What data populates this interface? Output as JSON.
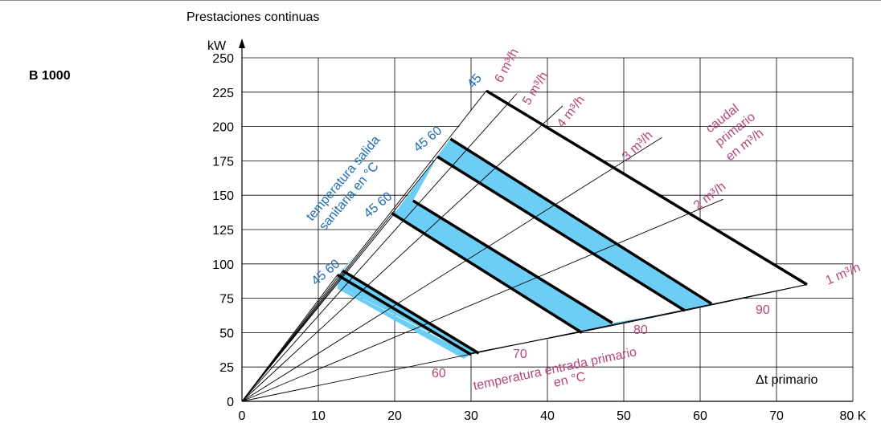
{
  "model": "B 1000",
  "colors": {
    "blue_text": "#1c6cb4",
    "magenta_text": "#b8457a",
    "fill_blue": "#6ccef4",
    "white": "#ffffff"
  },
  "chart_data": {
    "type": "area",
    "title": "Prestaciones continuas",
    "ylabel": "kW",
    "xlabel": "Δt primario",
    "x_unit": "K",
    "xlim": [
      0,
      80
    ],
    "ylim": [
      0,
      250
    ],
    "x_ticks": [
      0,
      10,
      20,
      30,
      40,
      50,
      60,
      70,
      80
    ],
    "y_ticks": [
      0,
      25,
      50,
      75,
      100,
      125,
      150,
      175,
      200,
      225,
      250
    ],
    "grid": true,
    "flow_rays": [
      {
        "label": "1 m³/h",
        "end": [
          74,
          85
        ]
      },
      {
        "label": "2 m³/h",
        "end": [
          63,
          147
        ]
      },
      {
        "label": "3 m³/h",
        "end": [
          55,
          192
        ]
      },
      {
        "label": "4 m³/h",
        "end": [
          42,
          215
        ]
      },
      {
        "label": "5 m³/h",
        "end": [
          36,
          224
        ]
      },
      {
        "label": "6 m³/h",
        "end": [
          32,
          226
        ]
      }
    ],
    "lower_boundary": [
      [
        30,
        35
      ],
      [
        44,
        50
      ],
      [
        58,
        66
      ],
      [
        74,
        85
      ]
    ],
    "upper_boundary": [
      [
        12.5,
        84
      ],
      [
        13,
        95
      ],
      [
        20,
        137
      ],
      [
        32,
        226
      ],
      [
        74,
        85
      ]
    ],
    "light_strip": [
      [
        12.5,
        84
      ],
      [
        30,
        34
      ],
      [
        29,
        31
      ],
      [
        12.5,
        82
      ]
    ],
    "hot_water_lines": [
      {
        "from": [
          12.5,
          92
        ],
        "to": [
          30,
          34
        ]
      },
      {
        "from": [
          13.2,
          95
        ],
        "to": [
          31,
          35
        ]
      },
      {
        "from": [
          19.6,
          137
        ],
        "to": [
          44.5,
          50
        ]
      },
      {
        "from": [
          22.4,
          146
        ],
        "to": [
          48.5,
          57
        ]
      },
      {
        "from": [
          25.6,
          178
        ],
        "to": [
          58,
          66
        ]
      },
      {
        "from": [
          27.3,
          191
        ],
        "to": [
          61.5,
          71
        ]
      },
      {
        "from": [
          32,
          226
        ],
        "to": [
          74,
          85
        ]
      }
    ],
    "white_bands": [
      [
        [
          13.2,
          95
        ],
        [
          19.6,
          137
        ],
        [
          44.5,
          50
        ],
        [
          31,
          35
        ]
      ],
      [
        [
          22.4,
          146
        ],
        [
          25.6,
          178
        ],
        [
          58,
          66
        ],
        [
          48.5,
          57
        ]
      ],
      [
        [
          27.3,
          191
        ],
        [
          32,
          226
        ],
        [
          74,
          85
        ],
        [
          61.5,
          71
        ]
      ]
    ],
    "annotations": {
      "hot_water_temperature": "temperatura salida sanitaria en °C",
      "hot_water_temperature_line1": "temperatura salida",
      "hot_water_temperature_line2": "sanitaria en °C",
      "primary_flow": "caudal primario en m³/h",
      "primary_flow_line1": "caudal",
      "primary_flow_line2": "primario",
      "primary_flow_line3": "en m³/h",
      "primary_inlet_temperature": "temperatura entrada primario en °C",
      "primary_inlet_temperature_line1": "temperatura entrada primario",
      "primary_inlet_temperature_line2": "en °C",
      "temp_pairs": [
        "45 60",
        "45 60",
        "45 60",
        "45"
      ],
      "inlet_temps": [
        "60",
        "70",
        "80",
        "90"
      ],
      "delta_t_label": "Δt primario"
    }
  }
}
